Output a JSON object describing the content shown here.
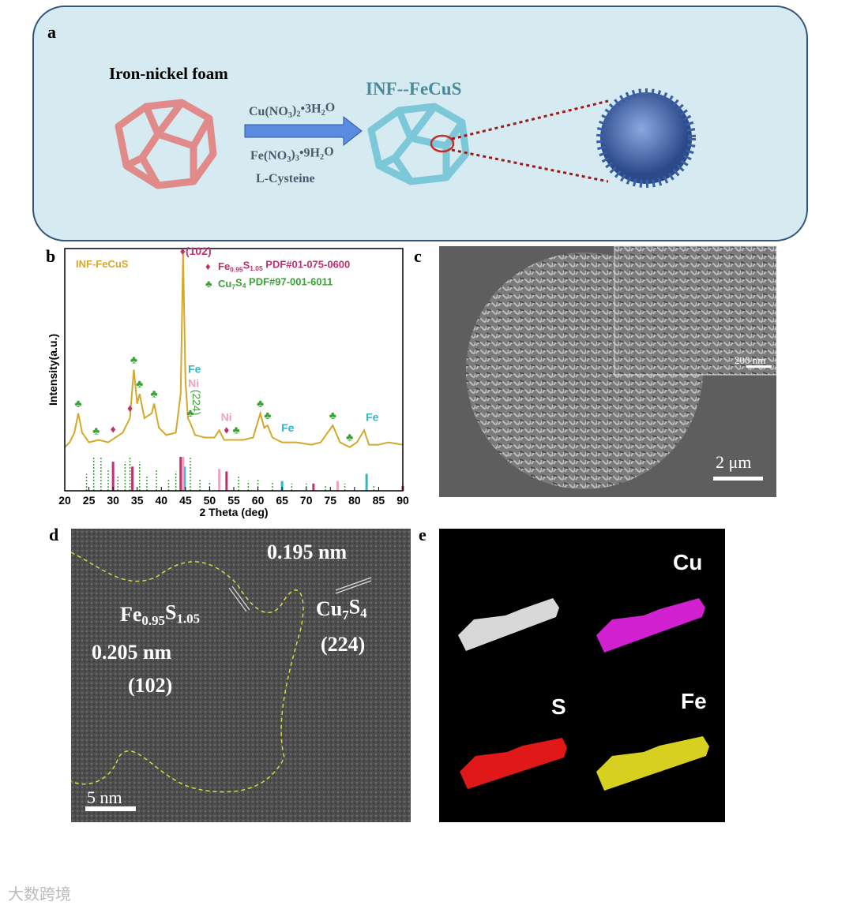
{
  "panel_labels": [
    "a",
    "b",
    "c",
    "d",
    "e"
  ],
  "scheme": {
    "precursor": "Iron-nickel foam",
    "product": "INF--FeCuS",
    "reagent_1": [
      "Cu(NO",
      "3",
      ")",
      "2",
      "•3H",
      "2",
      "O"
    ],
    "reagent_2": [
      "Fe(NO",
      "3",
      ")",
      "3",
      "•9H",
      "2",
      "O"
    ],
    "reagent_3": "L-Cysteine"
  },
  "chart_data": {
    "type": "line",
    "xlabel": "2 Theta (deg)",
    "ylabel": "Intensity(a.u.)",
    "xlim": [
      20,
      90
    ],
    "xticks": [
      20,
      25,
      30,
      35,
      40,
      45,
      50,
      55,
      60,
      65,
      70,
      75,
      80,
      85,
      90
    ],
    "ylim": [
      0,
      100
    ],
    "series": [
      {
        "name": "INF-FeCuS",
        "color": "#d4a82a",
        "x": [
          20,
          21,
          22,
          22.8,
          23.6,
          25,
          27,
          29,
          30.5,
          32,
          33.5,
          34.3,
          35,
          35.5,
          36.5,
          38,
          38.5,
          39.5,
          41,
          43,
          44,
          44.5,
          45,
          45.5,
          46,
          47,
          49,
          51,
          52,
          53,
          55,
          57,
          59,
          60.5,
          61.3,
          62,
          63,
          65,
          68,
          71,
          73,
          75.5,
          77,
          79,
          80.5,
          82,
          83,
          85,
          87,
          90
        ],
        "values": [
          18,
          20,
          24,
          32,
          24,
          20,
          21,
          20,
          22,
          24,
          30,
          50,
          36,
          40,
          30,
          32,
          36,
          26,
          23,
          24,
          40,
          98,
          45,
          30,
          28,
          23,
          22,
          22,
          25,
          21,
          21,
          21,
          22,
          32,
          26,
          27,
          22,
          20,
          20,
          19,
          20,
          27,
          20,
          18,
          20,
          25,
          19,
          19,
          20,
          19
        ]
      }
    ],
    "legend": [
      {
        "symbol": "♦",
        "color": "#c0306f",
        "text": [
          "Fe",
          "0.95",
          "S",
          "1.05",
          " PDF#01-075-0600"
        ]
      },
      {
        "symbol": "♣",
        "color": "#3aa335",
        "text": [
          "Cu",
          "7",
          "S",
          "4",
          " PDF#97-001-6011"
        ]
      }
    ],
    "references": [
      {
        "color": "#c0306f",
        "x": [
          30,
          34,
          44,
          53.5,
          71.5,
          90
        ],
        "values": [
          12,
          10,
          14,
          8,
          3,
          2
        ]
      },
      {
        "color": "#3aa335",
        "dashed": true,
        "x": [
          24.5,
          26,
          27.5,
          29,
          31,
          32.5,
          33.5,
          35.5,
          37,
          39,
          41.5,
          43,
          46,
          48,
          50,
          56,
          58,
          60,
          63,
          67,
          70,
          74,
          78,
          84
        ],
        "values": [
          7,
          14,
          14,
          9,
          6,
          12,
          14,
          12,
          6,
          9,
          5,
          8,
          14,
          5,
          4,
          6,
          4,
          5,
          4,
          3,
          3,
          2,
          3,
          2
        ]
      },
      {
        "color": "#2fb6c8",
        "x": [
          44.8,
          65,
          82.5
        ],
        "values": [
          10,
          4,
          7
        ]
      },
      {
        "color": "#f0a0c0",
        "x": [
          44.5,
          52,
          76.5
        ],
        "values": [
          14,
          9,
          4
        ]
      }
    ],
    "annotations": [
      {
        "x": 44.5,
        "text": "♦(102)",
        "color": "#c0306f"
      },
      {
        "x": 45.2,
        "text": "Ni",
        "color": "#f0a0c0"
      },
      {
        "x": 45.2,
        "text": "Fe",
        "color": "#2fb6c8"
      },
      {
        "x": 46.5,
        "text": "(224)",
        "color": "#3aa335"
      },
      {
        "x": 52,
        "text": "Ni",
        "color": "#f0a0c0"
      },
      {
        "x": 64.5,
        "text": "Fe",
        "color": "#2fb6c8"
      },
      {
        "x": 82,
        "text": "Fe",
        "color": "#2fb6c8"
      }
    ],
    "markers": [
      {
        "x": 22.8,
        "symbol": "♣",
        "color": "#3aa335"
      },
      {
        "x": 26.5,
        "symbol": "♣",
        "color": "#3aa335"
      },
      {
        "x": 30,
        "symbol": "♦",
        "color": "#c0306f"
      },
      {
        "x": 33.5,
        "symbol": "♦",
        "color": "#c0306f"
      },
      {
        "x": 34.3,
        "symbol": "♣",
        "color": "#3aa335"
      },
      {
        "x": 35.5,
        "symbol": "♣",
        "color": "#3aa335"
      },
      {
        "x": 38.5,
        "symbol": "♣",
        "color": "#3aa335"
      },
      {
        "x": 46,
        "symbol": "♣",
        "color": "#3aa335"
      },
      {
        "x": 53.5,
        "symbol": "♦",
        "color": "#c0306f"
      },
      {
        "x": 55.5,
        "symbol": "♣",
        "color": "#3aa335"
      },
      {
        "x": 60.5,
        "symbol": "♣",
        "color": "#3aa335"
      },
      {
        "x": 62,
        "symbol": "♣",
        "color": "#3aa335"
      },
      {
        "x": 75.5,
        "symbol": "♣",
        "color": "#3aa335"
      },
      {
        "x": 79,
        "symbol": "♣",
        "color": "#3aa335"
      }
    ]
  },
  "sem": {
    "inset_scale": "200 nm",
    "scale": "2 μm"
  },
  "tem": {
    "scale": "5 nm",
    "spacing_1": "0.195 nm",
    "phase_1": [
      "Cu",
      "7",
      "S",
      "4"
    ],
    "plane_1": "(224)",
    "phase_2": [
      "Fe",
      "0.95",
      "S",
      "1.05"
    ],
    "spacing_2": "0.205 nm",
    "plane_2": "(102)"
  },
  "eds": {
    "maps": [
      "Cu",
      "S",
      "Fe"
    ]
  },
  "watermark": "大数跨境"
}
